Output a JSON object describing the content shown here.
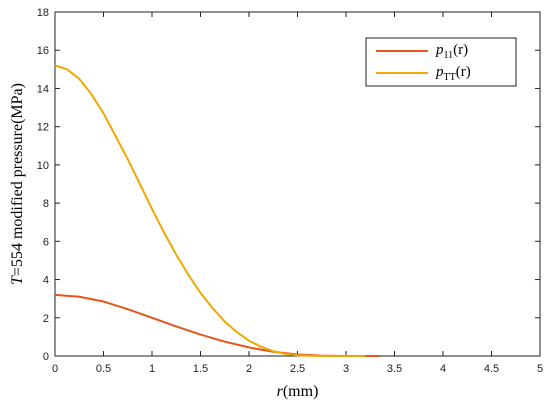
{
  "chart_data": {
    "type": "line",
    "xlabel": {
      "italic": "r",
      "rest": "(mm)"
    },
    "ylabel": {
      "italic": "T",
      "rest": "=554 modified pressure(MPa)"
    },
    "xlim": [
      0,
      5
    ],
    "ylim": [
      0,
      18
    ],
    "xticks": [
      "0",
      "0.5",
      "1",
      "1.5",
      "2",
      "2.5",
      "3",
      "3.5",
      "4",
      "4.5",
      "5"
    ],
    "yticks": [
      "0",
      "2",
      "4",
      "6",
      "8",
      "10",
      "12",
      "14",
      "16",
      "18"
    ],
    "grid": false,
    "legend_position": "top-right",
    "series": [
      {
        "name": "p11(r)",
        "legend_base": "p",
        "legend_sub": "11",
        "legend_suffix": "(r)",
        "color": "#e8541b",
        "x": [
          0,
          0.25,
          0.5,
          0.75,
          1.0,
          1.25,
          1.5,
          1.75,
          2.0,
          2.25,
          2.5,
          2.75,
          3.0,
          3.2,
          3.35
        ],
        "y": [
          3.2,
          3.1,
          2.85,
          2.45,
          2.0,
          1.55,
          1.12,
          0.75,
          0.45,
          0.22,
          0.08,
          0.02,
          0.0,
          0.0,
          0.0
        ]
      },
      {
        "name": "pTT(r)",
        "legend_base": "p",
        "legend_sub": "TT",
        "legend_suffix": "(r)",
        "color": "#f0a800",
        "x": [
          0,
          0.125,
          0.25,
          0.375,
          0.5,
          0.625,
          0.75,
          0.875,
          1.0,
          1.125,
          1.25,
          1.375,
          1.5,
          1.625,
          1.75,
          1.875,
          2.0,
          2.125,
          2.25,
          2.375,
          2.5,
          2.625,
          2.75,
          2.875,
          3.0,
          3.1,
          3.2
        ],
        "y": [
          15.2,
          15.0,
          14.5,
          13.7,
          12.7,
          11.5,
          10.3,
          9.0,
          7.7,
          6.45,
          5.3,
          4.25,
          3.3,
          2.5,
          1.8,
          1.25,
          0.8,
          0.48,
          0.25,
          0.11,
          0.04,
          0.01,
          0.0,
          0.0,
          0.0,
          0.0,
          0.0
        ]
      }
    ]
  }
}
